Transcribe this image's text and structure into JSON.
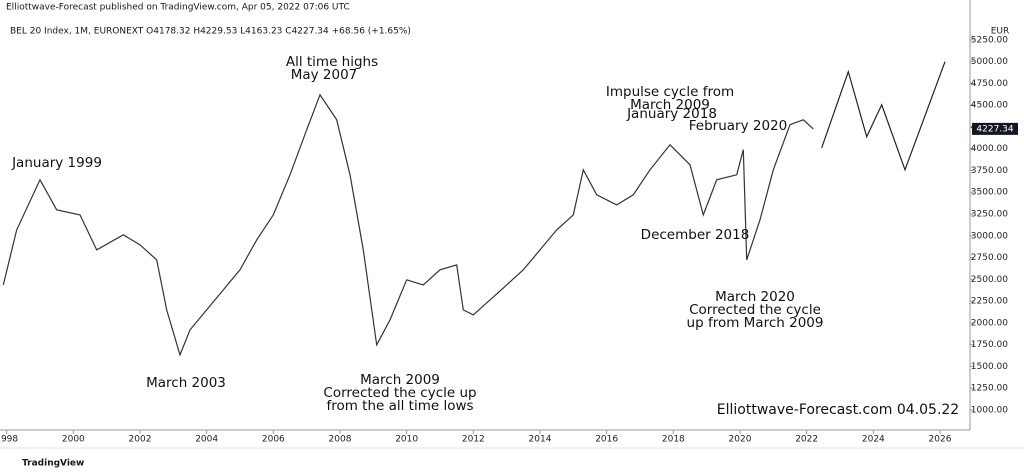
{
  "chart_data": {
    "type": "line",
    "header": "Elliottwave-Forecast published on TradingView.com, Apr 05, 2022 07:06 UTC",
    "symbol_line": "BEL 20 Index, 1M, EURONEXT  O4178.32  H4229.53  L4163.23  C4227.34  +68.56 (+1.65%)",
    "currency": "EUR",
    "footer": "TradingView",
    "watermark": "Elliottwave-Forecast.com  04.05.22",
    "annotations": [
      {
        "lines": [
          "January 1999"
        ]
      },
      {
        "lines": [
          "All time highs",
          "May 2007"
        ]
      },
      {
        "lines": [
          "March 2003"
        ]
      },
      {
        "lines": [
          "March 2009",
          "Corrected the cycle up",
          "from the all time lows"
        ]
      },
      {
        "lines": [
          "Impulse cycle from",
          "March 2009"
        ]
      },
      {
        "lines": [
          "January 2018"
        ]
      },
      {
        "lines": [
          "February 2020"
        ]
      },
      {
        "lines": [
          "December 2018"
        ]
      },
      {
        "lines": [
          "March 2020",
          "Corrected the cycle",
          "up from March 2009"
        ]
      }
    ],
    "series": [
      {
        "name": "BEL 20 Index",
        "color": "#333333",
        "x": [
          1997.9,
          1998.3,
          1999.0,
          1999.5,
          2000.2,
          2000.7,
          2001.5,
          2002.0,
          2002.5,
          2002.8,
          2003.2,
          2003.5,
          2004.0,
          2004.5,
          2005.0,
          2005.5,
          2006.0,
          2006.5,
          2007.0,
          2007.4,
          2007.9,
          2008.3,
          2008.7,
          2009.1,
          2009.5,
          2010.0,
          2010.5,
          2011.0,
          2011.5,
          2011.7,
          2012.0,
          2012.5,
          2013.0,
          2013.5,
          2014.0,
          2014.5,
          2015.0,
          2015.3,
          2015.7,
          2016.3,
          2016.8,
          2017.3,
          2017.9,
          2018.5,
          2018.9,
          2019.3,
          2019.9,
          2020.1,
          2020.2,
          2020.6,
          2021.0,
          2021.5,
          2021.9,
          2022.2
        ],
        "values": [
          2436,
          3068,
          3643,
          3298,
          3240,
          2838,
          3011,
          2896,
          2723,
          2149,
          1632,
          1919,
          2149,
          2379,
          2609,
          2953,
          3240,
          3700,
          4217,
          4619,
          4332,
          3700,
          2838,
          1747,
          2034,
          2494,
          2436,
          2609,
          2666,
          2149,
          2092,
          2264,
          2436,
          2609,
          2838,
          3068,
          3240,
          3758,
          3470,
          3355,
          3470,
          3758,
          4045,
          3815,
          3240,
          3643,
          3700,
          3988,
          2723,
          3183,
          3758,
          4275,
          4332,
          4227
        ]
      },
      {
        "name": "Projection",
        "color": "#222222",
        "x": [
          2022.45,
          2023.25,
          2023.8,
          2024.25,
          2024.95,
          2026.15
        ],
        "values": [
          4010,
          4884,
          4137,
          4504,
          3758,
          4999
        ]
      }
    ],
    "last_price": 4227.34,
    "xlim": [
      1997.8,
      2026.9
    ],
    "xticks": [
      1998,
      2000,
      2002,
      2004,
      2006,
      2008,
      2010,
      2012,
      2014,
      2016,
      2018,
      2020,
      2022,
      2024,
      2026
    ],
    "ylim": [
      770,
      5420
    ],
    "yticks": [
      {
        "value": 1000,
        "label": "1000.00"
      },
      {
        "value": 1250,
        "label": "1250.00"
      },
      {
        "value": 1500,
        "label": "1500.00"
      },
      {
        "value": 1750,
        "label": "1750.00"
      },
      {
        "value": 2000,
        "label": "2000.00"
      },
      {
        "value": 2250,
        "label": "2250.00"
      },
      {
        "value": 2500,
        "label": "2500.00"
      },
      {
        "value": 2750,
        "label": "2750.00"
      },
      {
        "value": 3000,
        "label": "3000.00"
      },
      {
        "value": 3250,
        "label": "3250.00"
      },
      {
        "value": 3500,
        "label": "3500.00"
      },
      {
        "value": 3750,
        "label": "3750.00"
      },
      {
        "value": 4000,
        "label": "4000.00"
      },
      {
        "value": 4250,
        "label": "4250.00"
      },
      {
        "value": 4500,
        "label": "4500.00"
      },
      {
        "value": 4750,
        "label": "4750.00"
      },
      {
        "value": 5000,
        "label": "5000.00"
      },
      {
        "value": 5250,
        "label": "5250.00"
      }
    ]
  }
}
